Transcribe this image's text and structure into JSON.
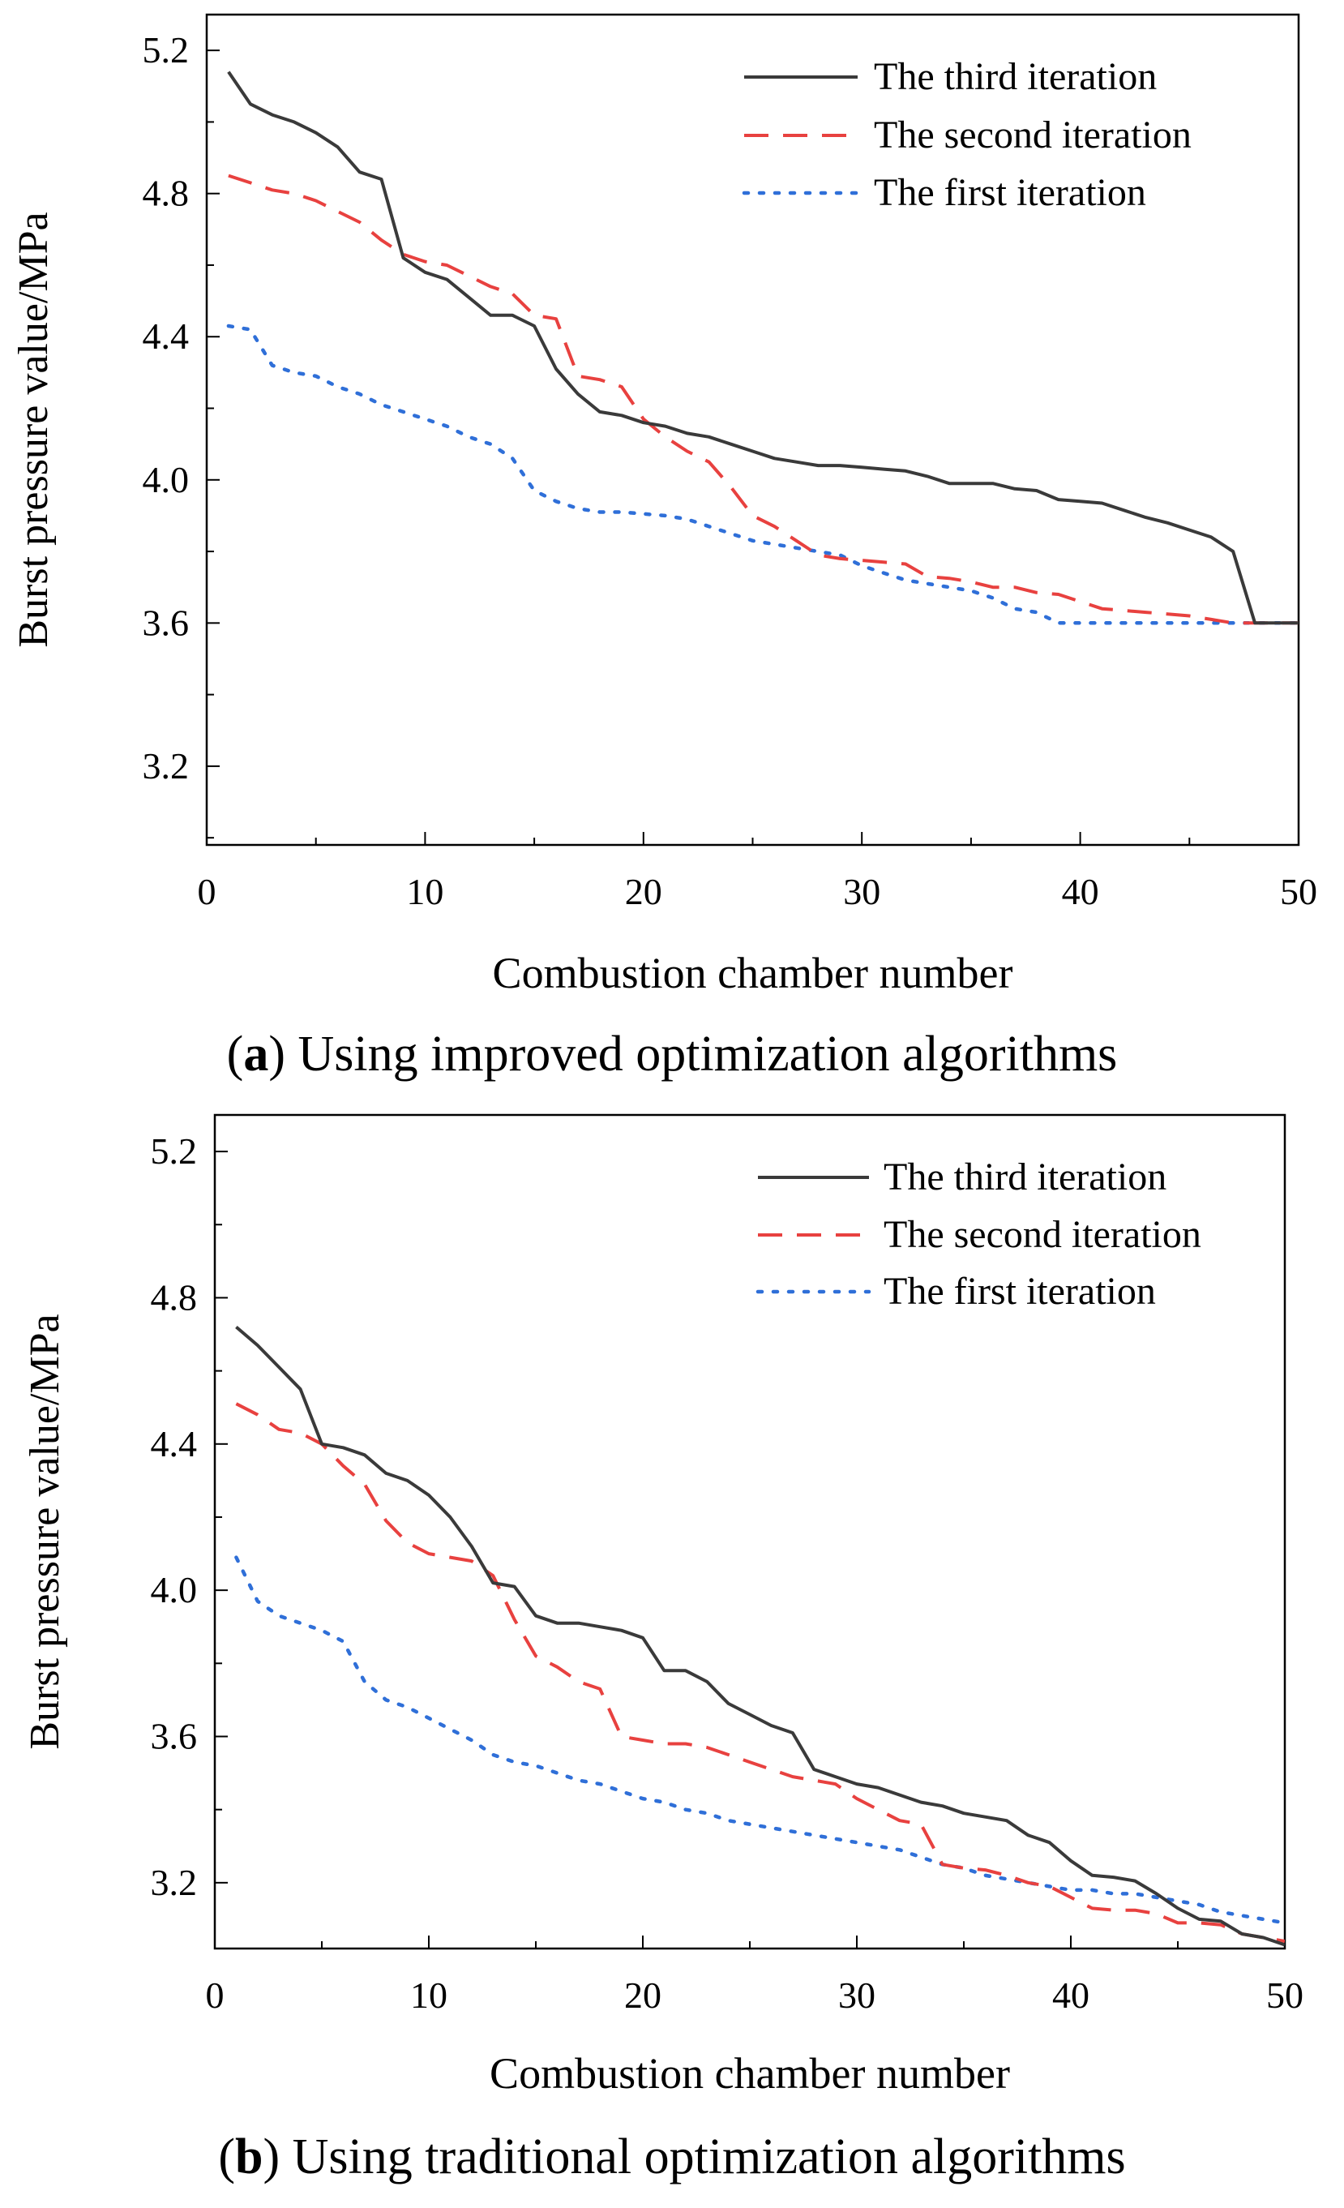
{
  "chart_data": [
    {
      "type": "line",
      "caption_letter": "a",
      "caption_text": "Using improved optimization algorithms",
      "xlabel": "Combustion chamber number",
      "ylabel": "Burst pressure value/MPa",
      "xlim": [
        0,
        50
      ],
      "ylim": [
        2.98,
        5.3
      ],
      "xticks": [
        "0",
        "10",
        "20",
        "30",
        "40",
        "50"
      ],
      "yticks": [
        "3.2",
        "3.6",
        "4.0",
        "4.4",
        "4.8",
        "5.2"
      ],
      "grid": false,
      "legend_position": "top-right",
      "series": [
        {
          "name": "The third iteration",
          "style": "solid",
          "color": "#3a3a3a",
          "x": [
            1,
            2,
            3,
            4,
            5,
            6,
            7,
            8,
            9,
            10,
            11,
            12,
            13,
            14,
            15,
            16,
            17,
            18,
            19,
            20,
            21,
            22,
            23,
            24,
            25,
            26,
            27,
            28,
            29,
            30,
            31,
            32,
            33,
            34,
            35,
            36,
            37,
            38,
            39,
            40,
            41,
            42,
            43,
            44,
            45,
            46,
            47,
            48,
            49,
            50
          ],
          "y": [
            5.14,
            5.05,
            5.02,
            5.0,
            4.97,
            4.93,
            4.86,
            4.84,
            4.62,
            4.58,
            4.56,
            4.51,
            4.46,
            4.46,
            4.43,
            4.31,
            4.24,
            4.19,
            4.18,
            4.16,
            4.15,
            4.13,
            4.12,
            4.1,
            4.08,
            4.06,
            4.05,
            4.04,
            4.04,
            4.035,
            4.03,
            4.025,
            4.01,
            3.99,
            3.99,
            3.99,
            3.975,
            3.97,
            3.945,
            3.94,
            3.935,
            3.915,
            3.895,
            3.88,
            3.86,
            3.84,
            3.8,
            3.6,
            3.6,
            3.6
          ]
        },
        {
          "name": "The second iteration",
          "style": "dashed",
          "color": "#e8413f",
          "x": [
            1,
            2,
            3,
            4,
            5,
            6,
            7,
            8,
            9,
            10,
            11,
            12,
            13,
            14,
            15,
            16,
            17,
            18,
            19,
            20,
            21,
            22,
            23,
            24,
            25,
            26,
            27,
            28,
            29,
            30,
            31,
            32,
            33,
            34,
            35,
            36,
            37,
            38,
            39,
            40,
            41,
            42,
            43,
            44,
            45,
            46,
            47,
            48,
            49,
            50
          ],
          "y": [
            4.85,
            4.83,
            4.81,
            4.8,
            4.78,
            4.75,
            4.72,
            4.67,
            4.63,
            4.61,
            4.6,
            4.57,
            4.54,
            4.52,
            4.46,
            4.45,
            4.29,
            4.28,
            4.26,
            4.17,
            4.12,
            4.08,
            4.05,
            3.98,
            3.9,
            3.87,
            3.83,
            3.79,
            3.78,
            3.775,
            3.77,
            3.765,
            3.73,
            3.725,
            3.715,
            3.7,
            3.7,
            3.685,
            3.68,
            3.66,
            3.64,
            3.635,
            3.63,
            3.625,
            3.62,
            3.61,
            3.6,
            3.6,
            3.6,
            3.6
          ]
        },
        {
          "name": "The first iteration",
          "style": "dotted",
          "color": "#2f6fd8",
          "x": [
            1,
            2,
            3,
            4,
            5,
            6,
            7,
            8,
            9,
            10,
            11,
            12,
            13,
            14,
            15,
            16,
            17,
            18,
            19,
            20,
            21,
            22,
            23,
            24,
            25,
            26,
            27,
            28,
            29,
            30,
            31,
            32,
            33,
            34,
            35,
            36,
            37,
            38,
            39,
            40,
            41,
            42,
            43,
            44,
            45,
            46,
            47,
            48,
            49,
            50
          ],
          "y": [
            4.43,
            4.42,
            4.32,
            4.3,
            4.29,
            4.26,
            4.24,
            4.21,
            4.19,
            4.17,
            4.15,
            4.12,
            4.1,
            4.06,
            3.97,
            3.94,
            3.92,
            3.91,
            3.91,
            3.905,
            3.9,
            3.89,
            3.87,
            3.85,
            3.83,
            3.82,
            3.81,
            3.8,
            3.79,
            3.76,
            3.74,
            3.72,
            3.71,
            3.7,
            3.69,
            3.67,
            3.64,
            3.63,
            3.6,
            3.6,
            3.6,
            3.6,
            3.6,
            3.6,
            3.6,
            3.6,
            3.6,
            3.6,
            3.6,
            3.6
          ]
        }
      ]
    },
    {
      "type": "line",
      "caption_letter": "b",
      "caption_text": "Using traditional optimization algorithms",
      "xlabel": "Combustion chamber number",
      "ylabel": "Burst pressure value/MPa",
      "xlim": [
        0,
        50
      ],
      "ylim": [
        3.02,
        5.3
      ],
      "xticks": [
        "0",
        "10",
        "20",
        "30",
        "40",
        "50"
      ],
      "yticks": [
        "3.2",
        "3.6",
        "4.0",
        "4.4",
        "4.8",
        "5.2"
      ],
      "grid": false,
      "legend_position": "top-right",
      "series": [
        {
          "name": "The third iteration",
          "style": "solid",
          "color": "#3a3a3a",
          "x": [
            1,
            2,
            3,
            4,
            5,
            6,
            7,
            8,
            9,
            10,
            11,
            12,
            13,
            14,
            15,
            16,
            17,
            18,
            19,
            20,
            21,
            22,
            23,
            24,
            25,
            26,
            27,
            28,
            29,
            30,
            31,
            32,
            33,
            34,
            35,
            36,
            37,
            38,
            39,
            40,
            41,
            42,
            43,
            44,
            45,
            46,
            47,
            48,
            49,
            50
          ],
          "y": [
            4.72,
            4.67,
            4.61,
            4.55,
            4.4,
            4.39,
            4.37,
            4.32,
            4.3,
            4.26,
            4.2,
            4.12,
            4.02,
            4.01,
            3.93,
            3.91,
            3.91,
            3.9,
            3.89,
            3.87,
            3.78,
            3.78,
            3.75,
            3.69,
            3.66,
            3.63,
            3.61,
            3.51,
            3.49,
            3.47,
            3.46,
            3.44,
            3.42,
            3.41,
            3.39,
            3.38,
            3.37,
            3.33,
            3.31,
            3.26,
            3.22,
            3.215,
            3.205,
            3.17,
            3.13,
            3.1,
            3.095,
            3.06,
            3.05,
            3.03
          ]
        },
        {
          "name": "The second iteration",
          "style": "dashed",
          "color": "#e8413f",
          "x": [
            1,
            2,
            3,
            4,
            5,
            6,
            7,
            8,
            9,
            10,
            11,
            12,
            13,
            14,
            15,
            16,
            17,
            18,
            19,
            20,
            21,
            22,
            23,
            24,
            25,
            26,
            27,
            28,
            29,
            30,
            31,
            32,
            33,
            34,
            35,
            36,
            37,
            38,
            39,
            40,
            41,
            42,
            43,
            44,
            45,
            46,
            47,
            48,
            49,
            50
          ],
          "y": [
            4.51,
            4.48,
            4.44,
            4.43,
            4.4,
            4.34,
            4.29,
            4.19,
            4.13,
            4.1,
            4.09,
            4.08,
            4.04,
            3.92,
            3.82,
            3.79,
            3.75,
            3.73,
            3.6,
            3.59,
            3.58,
            3.58,
            3.57,
            3.55,
            3.53,
            3.51,
            3.49,
            3.48,
            3.47,
            3.43,
            3.4,
            3.37,
            3.36,
            3.25,
            3.24,
            3.235,
            3.22,
            3.2,
            3.19,
            3.16,
            3.13,
            3.125,
            3.125,
            3.115,
            3.09,
            3.09,
            3.085,
            3.06,
            3.05,
            3.04
          ]
        },
        {
          "name": "The first iteration",
          "style": "dotted",
          "color": "#2f6fd8",
          "x": [
            1,
            2,
            3,
            4,
            5,
            6,
            7,
            8,
            9,
            10,
            11,
            12,
            13,
            14,
            15,
            16,
            17,
            18,
            19,
            20,
            21,
            22,
            23,
            24,
            25,
            26,
            27,
            28,
            29,
            30,
            31,
            32,
            33,
            34,
            35,
            36,
            37,
            38,
            39,
            40,
            41,
            42,
            43,
            44,
            45,
            46,
            47,
            48,
            49,
            50
          ],
          "y": [
            4.09,
            3.97,
            3.93,
            3.91,
            3.89,
            3.86,
            3.75,
            3.7,
            3.68,
            3.65,
            3.62,
            3.59,
            3.55,
            3.53,
            3.52,
            3.5,
            3.48,
            3.47,
            3.45,
            3.43,
            3.42,
            3.4,
            3.39,
            3.37,
            3.36,
            3.35,
            3.34,
            3.33,
            3.32,
            3.31,
            3.3,
            3.29,
            3.27,
            3.25,
            3.24,
            3.22,
            3.21,
            3.2,
            3.19,
            3.18,
            3.18,
            3.17,
            3.17,
            3.16,
            3.15,
            3.14,
            3.12,
            3.11,
            3.1,
            3.09
          ]
        }
      ]
    }
  ]
}
